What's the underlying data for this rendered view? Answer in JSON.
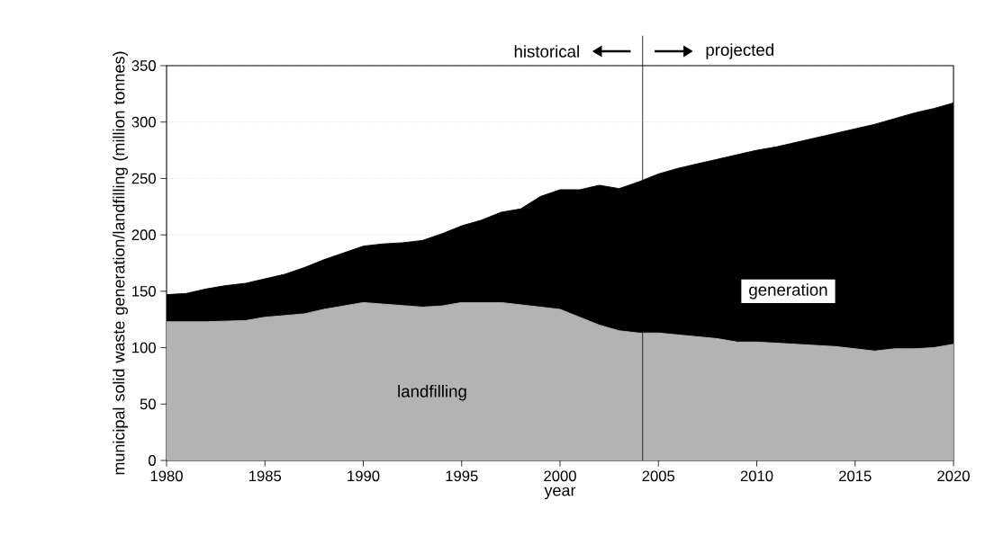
{
  "chart_data": {
    "type": "area",
    "xlabel": "year",
    "ylabel": "municipal solid waste generation/landfilling (million tonnes)",
    "series": [
      {
        "name": "generation",
        "color": "#000000",
        "x": [
          1980,
          1981,
          1982,
          1983,
          1984,
          1985,
          1986,
          1987,
          1988,
          1989,
          1990,
          1991,
          1992,
          1993,
          1994,
          1995,
          1996,
          1997,
          1998,
          1999,
          2000,
          2001,
          2002,
          2003,
          2004,
          2005,
          2006,
          2007,
          2008,
          2009,
          2010,
          2011,
          2012,
          2013,
          2014,
          2015,
          2016,
          2017,
          2018,
          2019,
          2020
        ],
        "values": [
          147,
          148,
          152,
          155,
          157,
          161,
          165,
          171,
          178,
          184,
          190,
          192,
          193,
          195,
          201,
          208,
          213,
          220,
          223,
          234,
          240,
          240,
          244,
          241,
          247,
          254,
          259,
          263,
          267,
          271,
          275,
          278,
          282,
          286,
          290,
          294,
          298,
          303,
          308,
          312,
          317
        ]
      },
      {
        "name": "landfilling",
        "color": "#b3b3b3",
        "x": [
          1980,
          1982,
          1984,
          1985,
          1987,
          1988,
          1990,
          1993,
          1994,
          1995,
          1997,
          1999,
          2000,
          2001,
          2002,
          2003,
          2004,
          2005,
          2008,
          2009,
          2010,
          2013,
          2014,
          2016,
          2017,
          2018,
          2019,
          2020
        ],
        "values": [
          123,
          123,
          124,
          127,
          130,
          134,
          140,
          136,
          137,
          140,
          140,
          136,
          134,
          127,
          120,
          115,
          113,
          113,
          108,
          105,
          105,
          102,
          101,
          97,
          99,
          99,
          100,
          103
        ]
      }
    ],
    "xlim": [
      1980,
      2020
    ],
    "ylim": [
      0,
      350
    ],
    "xticks": [
      1980,
      1985,
      1990,
      1995,
      2000,
      2005,
      2010,
      2015,
      2020
    ],
    "yticks": [
      0,
      50,
      100,
      150,
      200,
      250,
      300,
      350
    ],
    "grid": "y",
    "ref_lines": [
      {
        "axis": "x",
        "value": 2004.2
      }
    ],
    "annotations": [
      "historical",
      "projected"
    ]
  }
}
